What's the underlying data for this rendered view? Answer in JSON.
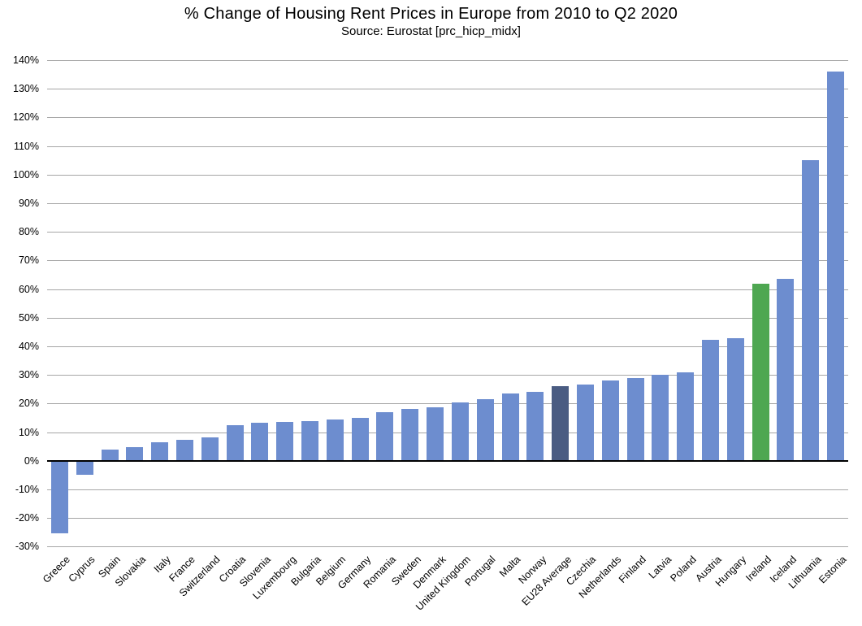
{
  "chart": {
    "title": "% Change of Housing Rent Prices in Europe from 2010 to Q2 2020",
    "subtitle": "Source: Eurostat [prc_hicp_midx]"
  },
  "colors": {
    "bar_default": "#6D8DCF",
    "bar_eu28": "#4A5C82",
    "bar_ireland": "#4EA751",
    "gridline": "#A6A6A6",
    "zero_axis": "#000000",
    "text": "#000000",
    "background": "#FFFFFF"
  },
  "chart_data": {
    "type": "bar",
    "title": "% Change of Housing Rent Prices in Europe from 2010 to Q2 2020",
    "subtitle": "Source: Eurostat [prc_hicp_midx]",
    "categories": [
      "Greece",
      "Cyprus",
      "Spain",
      "Slovakia",
      "Italy",
      "France",
      "Switzerland",
      "Croatia",
      "Slovenia",
      "Luxembourg",
      "Bulgaria",
      "Belgium",
      "Germany",
      "Romania",
      "Sweden",
      "Denmark",
      "United Kingdom",
      "Portugal",
      "Malta",
      "Norway",
      "EU28 Average",
      "Czechia",
      "Netherlands",
      "Finland",
      "Latvia",
      "Poland",
      "Austria",
      "Hungary",
      "Ireland",
      "Iceland",
      "Lithuania",
      "Estonia"
    ],
    "values": [
      -25,
      -4.5,
      4,
      4.8,
      6.5,
      7.4,
      8.2,
      12.5,
      13.3,
      13.6,
      14,
      14.5,
      15,
      17,
      18.2,
      18.8,
      20.3,
      21.5,
      23.5,
      24,
      26,
      26.6,
      28,
      28.8,
      30,
      31,
      42.3,
      42.7,
      62,
      63.5,
      105,
      136
    ],
    "highlight": {
      "EU28 Average": "bar_eu28",
      "Ireland": "bar_ireland"
    },
    "xlabel": "",
    "ylabel": "",
    "ylim": [
      -30,
      140
    ],
    "ytick_step": 10,
    "ytick_suffix": "%",
    "grid": true,
    "legend": "none",
    "x_label_rotation_deg": 45
  }
}
